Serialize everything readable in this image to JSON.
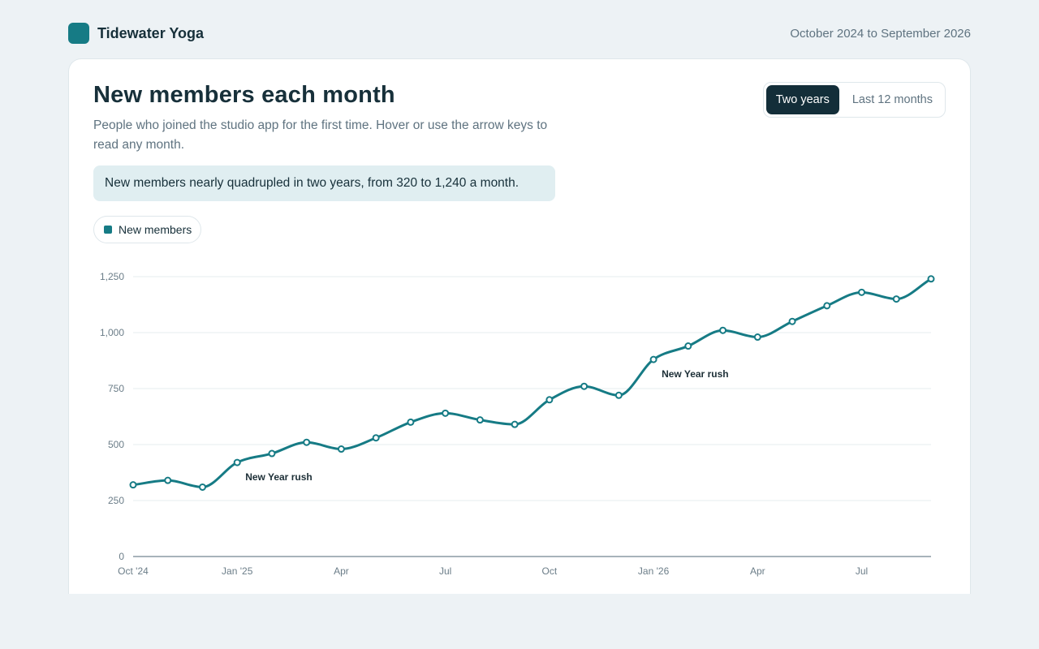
{
  "header": {
    "brand": "Tidewater Yoga",
    "date_range": "October 2024 to September 2026"
  },
  "card": {
    "title": "New members each month",
    "subtitle": "People who joined the studio app for the first time. Hover or use the arrow keys to read any month.",
    "callout": "New members nearly quadrupled in two years, from 320 to 1,240 a month.",
    "toggle": {
      "options": [
        "Two years",
        "Last 12 months"
      ],
      "selected": "Two years"
    },
    "legend_label": "New members"
  },
  "colors": {
    "line": "#167b85",
    "background": "#edf2f5"
  },
  "chart_data": {
    "type": "line",
    "x": [
      "Oct 2024",
      "Nov 2024",
      "Dec 2024",
      "Jan 2025",
      "Feb 2025",
      "Mar 2025",
      "Apr 2025",
      "May 2025",
      "Jun 2025",
      "Jul 2025",
      "Aug 2025",
      "Sep 2025",
      "Oct 2025",
      "Nov 2025",
      "Dec 2025",
      "Jan 2026",
      "Feb 2026",
      "Mar 2026",
      "Apr 2026",
      "May 2026",
      "Jun 2026",
      "Jul 2026",
      "Aug 2026",
      "Sep 2026"
    ],
    "series": [
      {
        "name": "New members",
        "values": [
          320,
          340,
          310,
          420,
          460,
          510,
          480,
          530,
          600,
          640,
          610,
          590,
          700,
          760,
          720,
          880,
          940,
          1010,
          980,
          1050,
          1120,
          1180,
          1150,
          1240
        ]
      }
    ],
    "x_tick_labels": [
      {
        "index": 0,
        "label": "Oct '24"
      },
      {
        "index": 3,
        "label": "Jan '25"
      },
      {
        "index": 6,
        "label": "Apr"
      },
      {
        "index": 9,
        "label": "Jul"
      },
      {
        "index": 12,
        "label": "Oct"
      },
      {
        "index": 15,
        "label": "Jan '26"
      },
      {
        "index": 18,
        "label": "Apr"
      },
      {
        "index": 21,
        "label": "Jul"
      }
    ],
    "y_ticks": [
      0,
      250,
      500,
      750,
      1000,
      1250
    ],
    "y_tick_labels": [
      "0",
      "250",
      "500",
      "750",
      "1,000",
      "1,250"
    ],
    "ylim": [
      0,
      1250
    ],
    "grid": true,
    "annotations": [
      {
        "index": 3,
        "text": "New Year rush"
      },
      {
        "index": 15,
        "text": "New Year rush"
      }
    ]
  }
}
